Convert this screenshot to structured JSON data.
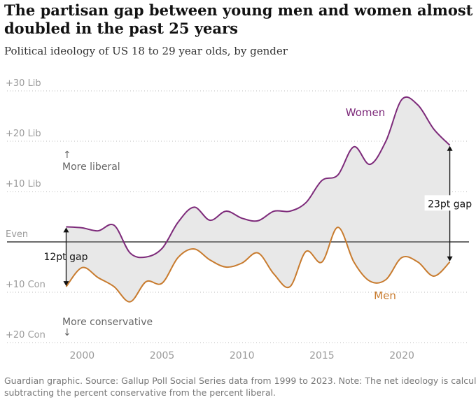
{
  "chart_data": {
    "type": "line",
    "title": [
      "The partisan gap between young men and women almost",
      "doubled in the past 25 years"
    ],
    "subtitle": "Political ideology of US 18 to 29 year olds, by gender",
    "x": [
      1999,
      2000,
      2001,
      2002,
      2003,
      2004,
      2005,
      2006,
      2007,
      2008,
      2009,
      2010,
      2011,
      2012,
      2013,
      2014,
      2015,
      2016,
      2017,
      2018,
      2019,
      2020,
      2021,
      2022,
      2023
    ],
    "series": [
      {
        "name": "Women",
        "color": "#7d2a7a",
        "values": [
          3,
          2.8,
          2.2,
          3.3,
          -2.2,
          -3,
          -1.3,
          3.9,
          6.9,
          4.3,
          6.1,
          4.7,
          4.2,
          6.1,
          6.1,
          7.8,
          12.2,
          13.3,
          18.9,
          15.4,
          20,
          28.3,
          27.2,
          22.4,
          19.2
        ]
      },
      {
        "name": "Men",
        "color": "#c87b2e",
        "values": [
          -8.9,
          -5.1,
          -7.1,
          -8.9,
          -11.9,
          -7.9,
          -8.2,
          -3.1,
          -1.4,
          -3.6,
          -5,
          -4.2,
          -2.2,
          -6.4,
          -8.9,
          -1.9,
          -4,
          2.9,
          -4,
          -7.8,
          -7.5,
          -3.1,
          -4,
          -6.8,
          -4
        ]
      }
    ],
    "xlim": [
      1995.3,
      2024.2
    ],
    "xticks": [
      2000,
      2005,
      2010,
      2015,
      2020
    ],
    "ylim": [
      -20,
      30
    ],
    "yticks": [
      {
        "value": 30,
        "label": "+30 Lib"
      },
      {
        "value": 20,
        "label": "+20 Lib"
      },
      {
        "value": 10,
        "label": "+10 Lib"
      },
      {
        "value": 0,
        "label": "Even"
      },
      {
        "value": -10,
        "label": "+10 Con"
      },
      {
        "value": -20,
        "label": "+20 Con"
      }
    ],
    "grid": true,
    "annotations": {
      "liberal": "More liberal",
      "conservative": "More conservative",
      "start_gap": "12pt gap",
      "end_gap": "23pt gap"
    },
    "source": [
      "Guardian graphic. Source: Gallup Poll Social Series data from 1999 to 2023. Note: The net ideology is calculated by",
      "subtracting the percent conservative from the percent liberal."
    ]
  }
}
